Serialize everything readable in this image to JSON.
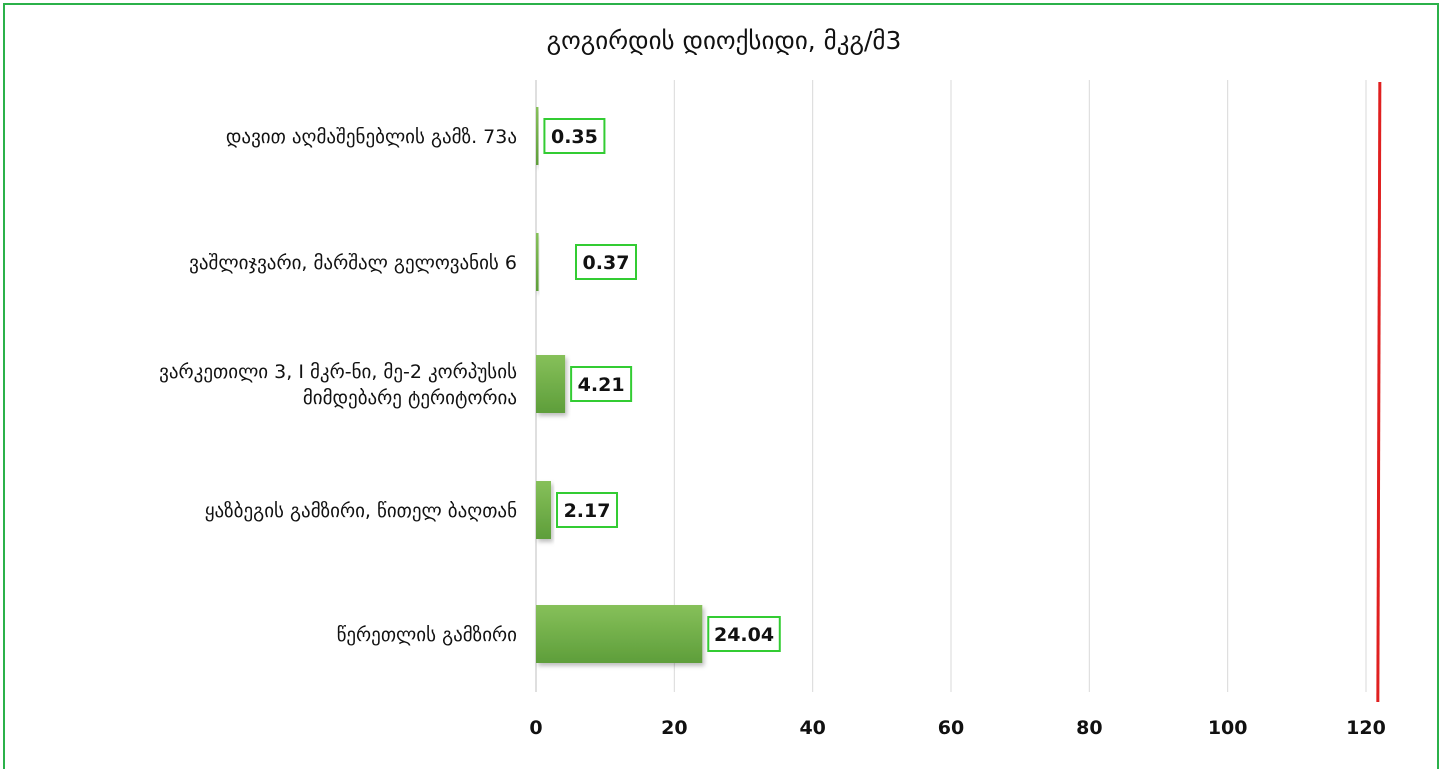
{
  "chart_data": {
    "type": "bar",
    "orientation": "horizontal",
    "title": "გოგირდის დიოქსიდი, მკგ/მ3",
    "categories": [
      "დავით აღმაშენებლის გამზ. 73ა",
      "ვაშლიჯვარი, მარშალ გელოვანის 6",
      "ვარკეთილი 3, I მკრ-ნი, მე-2 კორპუსის მიმდებარე ტერიტორია",
      "ყაზბეგის გამზირი, წითელ ბაღთან",
      "წერეთლის გამზირი"
    ],
    "category_label_lines": [
      [
        "დავით აღმაშენებლის გამზ. 73ა"
      ],
      [
        "ვაშლიჯვარი, მარშალ გელოვანის 6"
      ],
      [
        "ვარკეთილი 3, I მკრ-ნი, მე-2 კორპუსის",
        "მიმდებარე ტერიტორია"
      ],
      [
        "ყაზბეგის გამზირი, წითელ ბაღთან"
      ],
      [
        "წერეთლის გამზირი"
      ]
    ],
    "values": [
      0.35,
      0.37,
      4.21,
      2.17,
      24.04
    ],
    "data_labels": [
      "0.35",
      "0.37",
      "4.21",
      "2.17",
      "24.04"
    ],
    "x_ticks": [
      "0",
      "20",
      "40",
      "60",
      "80",
      "100",
      "120"
    ],
    "xlim": [
      0,
      120
    ],
    "reference_line": 122,
    "grid": "vertical",
    "legend": "none",
    "colors": {
      "bar": "#6aab45",
      "bar_light": "#86c05a",
      "label_border": "#33cc33",
      "reference_line": "#e02020",
      "grid": "#d9d9d9",
      "frame": "#2bb14a"
    }
  }
}
